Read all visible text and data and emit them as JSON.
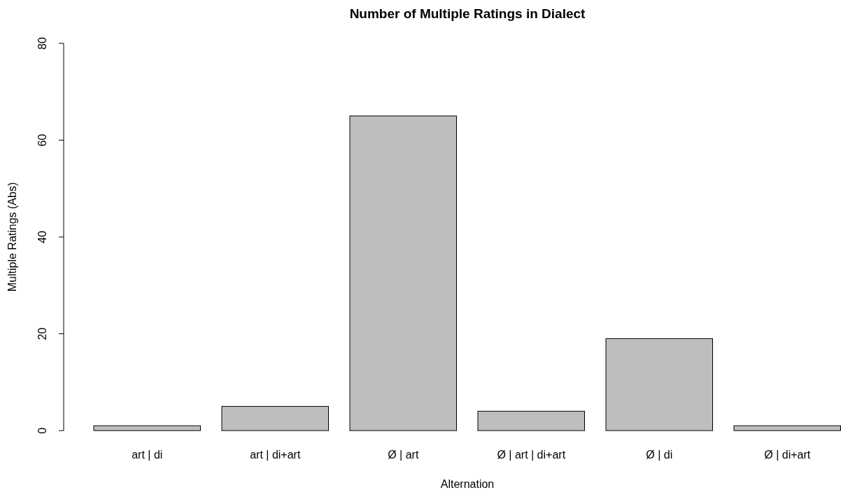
{
  "chart_data": {
    "type": "bar",
    "title": "Number of Multiple Ratings in Dialect",
    "xlabel": "Alternation",
    "ylabel": "Multiple Ratings (Abs)",
    "categories": [
      "art | di",
      "art | di+art",
      "Ø | art",
      "Ø | art | di+art",
      "Ø | di",
      "Ø | di+art"
    ],
    "values": [
      1,
      5,
      65,
      4,
      19,
      1
    ],
    "color": "#bebebe",
    "ylim": [
      0,
      80
    ],
    "yticks": [
      0,
      20,
      40,
      60,
      80
    ],
    "grid": false
  }
}
